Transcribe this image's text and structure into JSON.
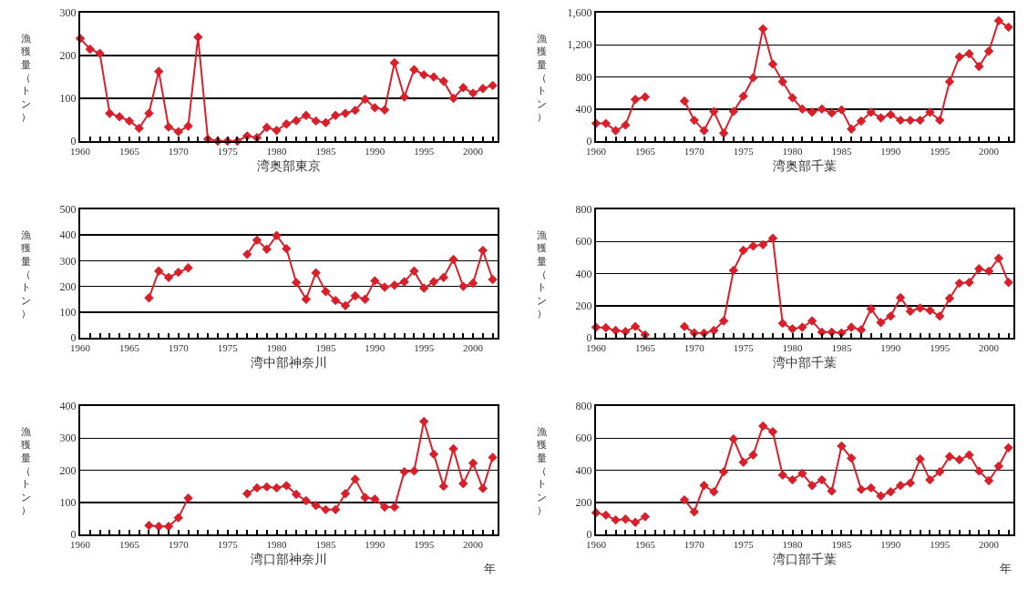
{
  "chart_data": [
    {
      "type": "line",
      "xlabel": "湾奥部東京",
      "ylabel": "漁獲量（トン）",
      "x": [
        1960,
        1961,
        1962,
        1963,
        1964,
        1965,
        1966,
        1967,
        1968,
        1969,
        1970,
        1971,
        1972,
        1973,
        1974,
        1975,
        1976,
        1977,
        1978,
        1979,
        1980,
        1981,
        1982,
        1983,
        1984,
        1985,
        1986,
        1987,
        1988,
        1989,
        1990,
        1991,
        1992,
        1993,
        1994,
        1995,
        1996,
        1997,
        1998,
        1999,
        2000,
        2001,
        2002
      ],
      "xlim": [
        1960,
        2002.5
      ],
      "xticks": [
        1960,
        1965,
        1970,
        1975,
        1980,
        1985,
        1990,
        1995,
        2000
      ],
      "ylim": [
        0,
        300
      ],
      "yticks": [
        0,
        100,
        200,
        300
      ],
      "grid": "y",
      "marker": "diamond",
      "line_style": "solid",
      "series": [
        {
          "color": "#d9202a",
          "values": [
            240,
            215,
            205,
            65,
            57,
            47,
            30,
            65,
            163,
            33,
            22,
            35,
            243,
            5,
            0,
            0,
            0,
            12,
            8,
            32,
            25,
            40,
            48,
            60,
            47,
            43,
            60,
            65,
            72,
            98,
            78,
            73,
            183,
            103,
            167,
            155,
            150,
            140,
            100,
            125,
            112,
            123,
            130
          ]
        }
      ]
    },
    {
      "type": "line",
      "xlabel": "湾奥部千葉",
      "ylabel": "漁獲量（トン）",
      "x": [
        1960,
        1961,
        1962,
        1963,
        1964,
        1965,
        1966,
        1967,
        1968,
        1969,
        1970,
        1971,
        1972,
        1973,
        1974,
        1975,
        1976,
        1977,
        1978,
        1979,
        1980,
        1981,
        1982,
        1983,
        1984,
        1985,
        1986,
        1987,
        1988,
        1989,
        1990,
        1991,
        1992,
        1993,
        1994,
        1995,
        1996,
        1997,
        1998,
        1999,
        2000,
        2001,
        2002
      ],
      "xlim": [
        1960,
        2002.5
      ],
      "xticks": [
        1960,
        1965,
        1970,
        1975,
        1980,
        1985,
        1990,
        1995,
        2000
      ],
      "ylim": [
        0,
        1600
      ],
      "yticks": [
        0,
        400,
        800,
        {
          "value": 1200,
          "label": "1,200"
        },
        {
          "value": 1600,
          "label": "1,600"
        }
      ],
      "grid": "y",
      "marker": "diamond",
      "line_style": "solid",
      "series": [
        {
          "color": "#d9202a",
          "values": [
            220,
            220,
            130,
            200,
            520,
            550,
            null,
            null,
            null,
            500,
            260,
            130,
            370,
            100,
            370,
            560,
            790,
            1400,
            960,
            740,
            540,
            400,
            360,
            400,
            350,
            390,
            150,
            250,
            360,
            290,
            330,
            260,
            260,
            260,
            360,
            260,
            740,
            1050,
            1090,
            930,
            1120,
            1500,
            1420
          ]
        }
      ]
    },
    {
      "type": "line",
      "xlabel": "湾中部神奈川",
      "ylabel": "漁獲量（トン）",
      "x": [
        1967,
        1968,
        1969,
        1970,
        1971,
        1972,
        1973,
        1974,
        1975,
        1976,
        1977,
        1978,
        1979,
        1980,
        1981,
        1982,
        1983,
        1984,
        1985,
        1986,
        1987,
        1988,
        1989,
        1990,
        1991,
        1992,
        1993,
        1994,
        1995,
        1996,
        1997,
        1998,
        1999,
        2000,
        2001,
        2002
      ],
      "xlim": [
        1960,
        2002.5
      ],
      "xticks": [
        1960,
        1965,
        1970,
        1975,
        1980,
        1985,
        1990,
        1995,
        2000
      ],
      "ylim": [
        0,
        500
      ],
      "yticks": [
        0,
        100,
        200,
        300,
        400,
        500
      ],
      "grid": "y",
      "marker": "diamond",
      "line_style": "solid",
      "series": [
        {
          "color": "#d9202a",
          "values": [
            155,
            260,
            235,
            255,
            272,
            null,
            null,
            null,
            null,
            null,
            325,
            380,
            345,
            398,
            347,
            215,
            150,
            253,
            180,
            145,
            125,
            163,
            150,
            222,
            197,
            205,
            218,
            260,
            193,
            218,
            235,
            305,
            200,
            213,
            340,
            227
          ]
        }
      ]
    },
    {
      "type": "line",
      "xlabel": "湾中部千葉",
      "ylabel": "漁獲量（トン）",
      "x": [
        1960,
        1961,
        1962,
        1963,
        1964,
        1965,
        1966,
        1967,
        1968,
        1969,
        1970,
        1971,
        1972,
        1973,
        1974,
        1975,
        1976,
        1977,
        1978,
        1979,
        1980,
        1981,
        1982,
        1983,
        1984,
        1985,
        1986,
        1987,
        1988,
        1989,
        1990,
        1991,
        1992,
        1993,
        1994,
        1995,
        1996,
        1997,
        1998,
        1999,
        2000,
        2001,
        2002
      ],
      "xlim": [
        1960,
        2002.5
      ],
      "xticks": [
        1960,
        1965,
        1970,
        1975,
        1980,
        1985,
        1990,
        1995,
        2000
      ],
      "ylim": [
        0,
        800
      ],
      "yticks": [
        0,
        200,
        400,
        600,
        800
      ],
      "grid": "y",
      "marker": "diamond",
      "line_style": "solid",
      "series": [
        {
          "color": "#d9202a",
          "values": [
            65,
            62,
            45,
            38,
            70,
            18,
            null,
            null,
            null,
            70,
            30,
            28,
            45,
            105,
            420,
            545,
            572,
            580,
            620,
            90,
            55,
            65,
            105,
            35,
            35,
            30,
            65,
            50,
            180,
            95,
            135,
            250,
            165,
            185,
            170,
            135,
            245,
            340,
            345,
            430,
            415,
            495,
            345
          ]
        }
      ]
    },
    {
      "type": "line",
      "xlabel": "湾口部神奈川",
      "ylabel": "漁獲量（トン）",
      "annotations": [
        "年"
      ],
      "x": [
        1967,
        1968,
        1969,
        1970,
        1971,
        1972,
        1973,
        1974,
        1975,
        1976,
        1977,
        1978,
        1979,
        1980,
        1981,
        1982,
        1983,
        1984,
        1985,
        1986,
        1987,
        1988,
        1989,
        1990,
        1991,
        1992,
        1993,
        1994,
        1995,
        1996,
        1997,
        1998,
        1999,
        2000,
        2001,
        2002
      ],
      "xlim": [
        1960,
        2002.5
      ],
      "xticks": [
        1960,
        1965,
        1970,
        1975,
        1980,
        1985,
        1990,
        1995,
        2000
      ],
      "ylim": [
        0,
        400
      ],
      "yticks": [
        0,
        100,
        200,
        300,
        400
      ],
      "grid": "y",
      "marker": "diamond",
      "line_style": "solid",
      "series": [
        {
          "color": "#d9202a",
          "values": [
            28,
            25,
            25,
            52,
            113,
            null,
            null,
            null,
            null,
            null,
            127,
            145,
            148,
            145,
            152,
            125,
            105,
            90,
            77,
            77,
            127,
            172,
            115,
            110,
            85,
            85,
            195,
            198,
            352,
            250,
            150,
            267,
            158,
            222,
            143,
            240
          ]
        }
      ]
    },
    {
      "type": "line",
      "xlabel": "湾口部千葉",
      "ylabel": "漁獲量（トン）",
      "annotations": [
        "年"
      ],
      "x": [
        1960,
        1961,
        1962,
        1963,
        1964,
        1965,
        1966,
        1967,
        1968,
        1969,
        1970,
        1971,
        1972,
        1973,
        1974,
        1975,
        1976,
        1977,
        1978,
        1979,
        1980,
        1981,
        1982,
        1983,
        1984,
        1985,
        1986,
        1987,
        1988,
        1989,
        1990,
        1991,
        1992,
        1993,
        1994,
        1995,
        1996,
        1997,
        1998,
        1999,
        2000,
        2001,
        2002
      ],
      "xlim": [
        1960,
        2002.5
      ],
      "xticks": [
        1960,
        1965,
        1970,
        1975,
        1980,
        1985,
        1990,
        1995,
        2000
      ],
      "ylim": [
        0,
        800
      ],
      "yticks": [
        0,
        200,
        400,
        600,
        800
      ],
      "grid": "y",
      "marker": "diamond",
      "line_style": "solid",
      "series": [
        {
          "color": "#d9202a",
          "values": [
            135,
            120,
            90,
            95,
            75,
            110,
            null,
            null,
            null,
            215,
            140,
            305,
            265,
            390,
            595,
            450,
            495,
            675,
            640,
            370,
            340,
            380,
            305,
            340,
            270,
            550,
            475,
            280,
            290,
            240,
            265,
            305,
            320,
            470,
            340,
            390,
            485,
            465,
            495,
            395,
            335,
            425,
            540
          ]
        }
      ]
    }
  ]
}
